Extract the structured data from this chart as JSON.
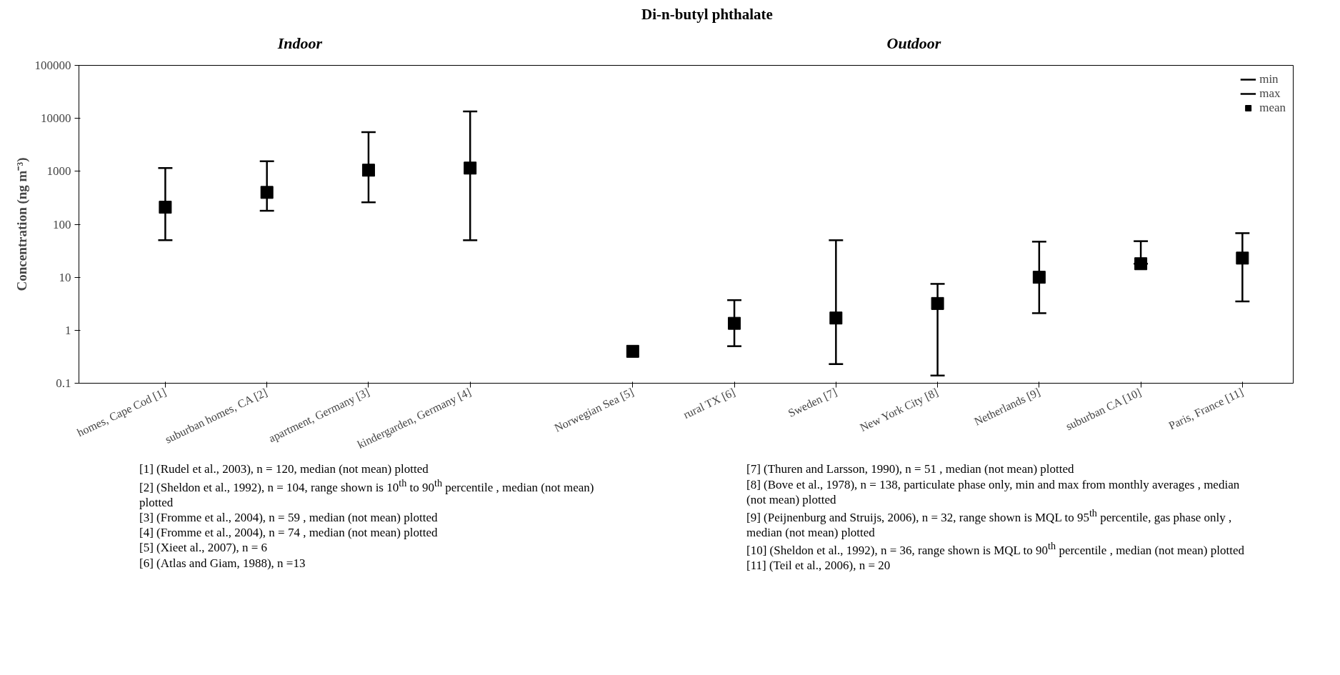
{
  "chart_data": {
    "type": "scatter",
    "title": "Di-n-butyl phthalate",
    "ylabel": "Concentration (ng m⁻³)",
    "categories": [
      "homes, Cape Cod [1]",
      "suburban homes, CA [2]",
      "apartment, Germany [3]",
      "kindergarden, Germany [4]",
      "Norwegian Sea [5]",
      "rural TX [6]",
      "Sweden [7]",
      "New York City [8]",
      "Netherlands [9]",
      "suburban CA [10]",
      "Paris, France [11]"
    ],
    "series": [
      {
        "name": "mean",
        "color": "#000000",
        "marker": "square",
        "values": [
          210,
          400,
          1050,
          1150,
          0.4,
          1.35,
          1.7,
          3.2,
          10,
          18,
          23
        ],
        "errors": [
          [
            50,
            1150
          ],
          [
            180,
            1550
          ],
          [
            260,
            5500
          ],
          [
            50,
            13500
          ],
          null,
          [
            0.5,
            3.7
          ],
          [
            0.23,
            50
          ],
          [
            0.14,
            7.5
          ],
          [
            2.1,
            47
          ],
          [
            18,
            48
          ],
          [
            3.5,
            68
          ]
        ]
      }
    ],
    "log": "y",
    "ylim": [
      0.1,
      100000
    ],
    "yticks": [
      0.1,
      1,
      10,
      100,
      1000,
      10000,
      100000
    ],
    "legend": "top right",
    "annotations": [
      "Indoor",
      "Outdoor",
      "min",
      "max",
      "[1] (Rudel et al., 2003), n = 120, median (not mean) plotted",
      "[2] (Sheldon et al., 1992), n = 104, range shown is 10$^{th}$ to 90$^{th}$ percentile , median (not mean) plotted",
      "[3] (Fromme et al., 2004), n = 59 , median (not mean) plotted",
      "[4] (Fromme et al., 2004), n = 74 , median (not mean) plotted",
      "[5] (Xieet al., 2007), n = 6",
      "[6] (Atlas and Giam, 1988), n =13",
      "[7] (Thuren and Larsson, 1990), n = 51 , median (not mean) plotted",
      "[8] (Bove et al., 1978), n = 138, particulate phase only, min and max from monthly averages , median (not mean) plotted",
      "[9] (Peijnenburg and Struijs, 2006), n = 32, range shown is MQL to 95$^{th}$ percentile, gas phase only , median (not mean) plotted",
      "[10] (Sheldon et al., 1992), n = 36, range shown is MQL to 90$^{th}$ percentile , median (not mean) plotted",
      "[11] (Teil et al., 2006), n = 20"
    ]
  }
}
